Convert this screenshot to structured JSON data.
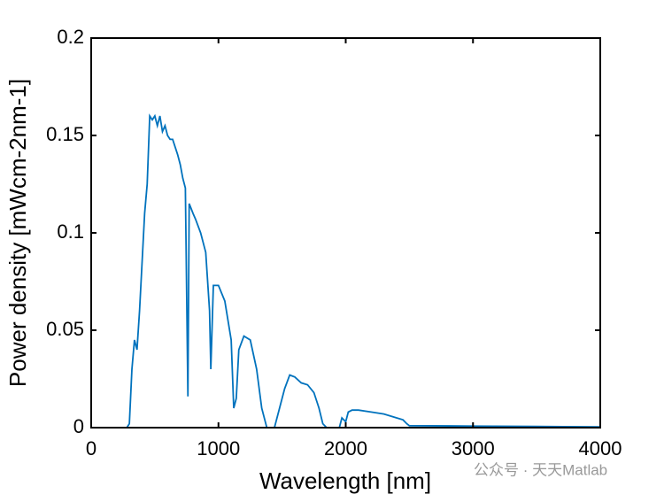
{
  "chart_data": {
    "type": "line",
    "x_label": "Wavelength [nm]",
    "y_label": "Power density [mWcm-2nm-1]",
    "watermark": "公众号 · 天天Matlab",
    "xlim": [
      0,
      4000
    ],
    "xticks": [
      0,
      1000,
      2000,
      3000,
      4000
    ],
    "ylim": [
      0,
      0.2
    ],
    "yticks": [
      0,
      0.05,
      0.1,
      0.15,
      0.2
    ],
    "series": [
      {
        "color": "#0072bd",
        "x": [
          280,
          300,
          320,
          340,
          360,
          380,
          400,
          420,
          440,
          460,
          480,
          500,
          520,
          540,
          560,
          580,
          600,
          620,
          640,
          660,
          680,
          700,
          720,
          740,
          760,
          770,
          800,
          820,
          860,
          900,
          930,
          940,
          960,
          1000,
          1050,
          1100,
          1120,
          1140,
          1160,
          1200,
          1250,
          1300,
          1340,
          1380,
          1440,
          1480,
          1520,
          1560,
          1600,
          1650,
          1700,
          1750,
          1790,
          1820,
          1850,
          1950,
          1970,
          2000,
          2020,
          2050,
          2100,
          2200,
          2300,
          2400,
          2450,
          2480,
          2500,
          3000,
          3500,
          4000
        ],
        "values": [
          0,
          0.002,
          0.03,
          0.045,
          0.04,
          0.06,
          0.085,
          0.11,
          0.125,
          0.16,
          0.158,
          0.16,
          0.155,
          0.16,
          0.152,
          0.155,
          0.15,
          0.148,
          0.148,
          0.144,
          0.14,
          0.135,
          0.128,
          0.123,
          0.016,
          0.115,
          0.11,
          0.107,
          0.1,
          0.09,
          0.06,
          0.03,
          0.073,
          0.073,
          0.065,
          0.045,
          0.01,
          0.015,
          0.04,
          0.047,
          0.045,
          0.03,
          0.01,
          0,
          0,
          0.01,
          0.02,
          0.027,
          0.026,
          0.023,
          0.022,
          0.018,
          0.01,
          0.002,
          0,
          0,
          0.005,
          0.003,
          0.008,
          0.009,
          0.009,
          0.008,
          0.007,
          0.005,
          0.004,
          0.002,
          0.001,
          0.0008,
          0.0006,
          0.0004
        ]
      }
    ]
  }
}
